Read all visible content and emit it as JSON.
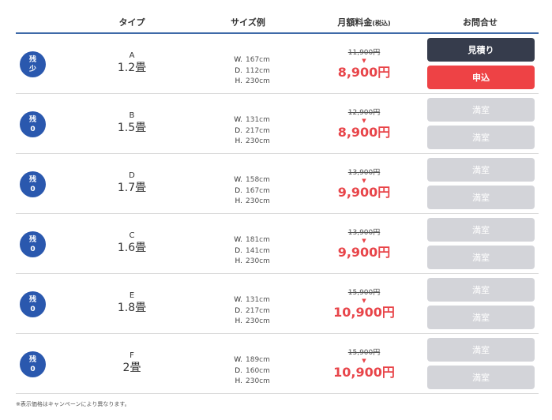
{
  "header": {
    "type": "タイプ",
    "size": "サイズ例",
    "price": "月額料金",
    "price_tax": "(税込)",
    "contact": "お問合せ"
  },
  "size_keys": {
    "w": "W.",
    "d": "D.",
    "h": "H."
  },
  "arrow": "▼",
  "rows": [
    {
      "badge_top": "残",
      "badge_bottom": "少",
      "code": "A",
      "size": "1.2畳",
      "w": "167cm",
      "d": "112cm",
      "h": "230cm",
      "old_price": "11,900円",
      "new_price": "8,900円",
      "btn1": "見積り",
      "btn2": "申込",
      "available": true
    },
    {
      "badge_top": "残",
      "badge_bottom": "0",
      "code": "B",
      "size": "1.5畳",
      "w": "131cm",
      "d": "217cm",
      "h": "230cm",
      "old_price": "12,900円",
      "new_price": "8,900円",
      "btn1": "満室",
      "btn2": "満室",
      "available": false
    },
    {
      "badge_top": "残",
      "badge_bottom": "0",
      "code": "D",
      "size": "1.7畳",
      "w": "158cm",
      "d": "167cm",
      "h": "230cm",
      "old_price": "13,900円",
      "new_price": "9,900円",
      "btn1": "満室",
      "btn2": "満室",
      "available": false
    },
    {
      "badge_top": "残",
      "badge_bottom": "0",
      "code": "C",
      "size": "1.6畳",
      "w": "181cm",
      "d": "141cm",
      "h": "230cm",
      "old_price": "13,900円",
      "new_price": "9,900円",
      "btn1": "満室",
      "btn2": "満室",
      "available": false
    },
    {
      "badge_top": "残",
      "badge_bottom": "0",
      "code": "E",
      "size": "1.8畳",
      "w": "131cm",
      "d": "217cm",
      "h": "230cm",
      "old_price": "15,900円",
      "new_price": "10,900円",
      "btn1": "満室",
      "btn2": "満室",
      "available": false
    },
    {
      "badge_top": "残",
      "badge_bottom": "0",
      "code": "F",
      "size": "2畳",
      "w": "189cm",
      "d": "160cm",
      "h": "230cm",
      "old_price": "15,900円",
      "new_price": "10,900円",
      "btn1": "満室",
      "btn2": "満室",
      "available": false
    }
  ],
  "note": "※表示価格はキャンペーンにより異なります。",
  "colors": {
    "header_rule": "#3f6aa8",
    "badge": "#2a58ae",
    "price_red": "#e8454a",
    "button_dark": "#363c4c",
    "button_red": "#ee4245",
    "button_disabled": "#d3d4d9"
  }
}
